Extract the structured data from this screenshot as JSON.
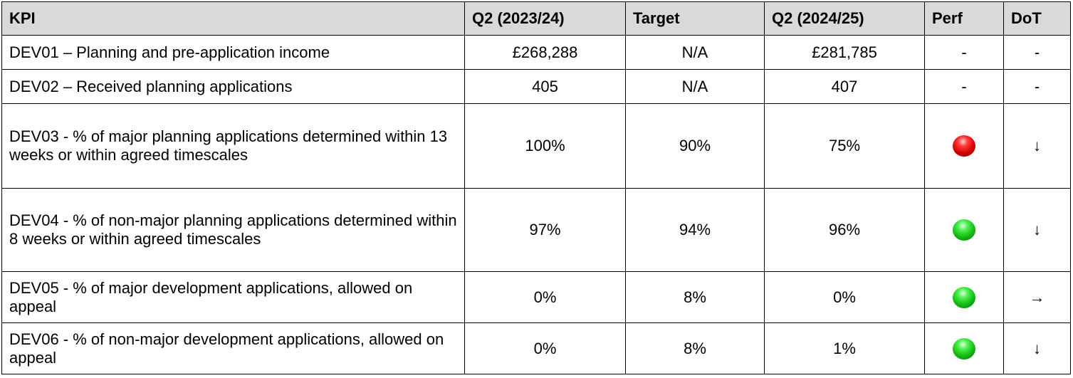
{
  "table": {
    "columns": [
      "KPI",
      "Q2 (2023/24)",
      "Target",
      "Q2 (2024/25)",
      "Perf",
      "DoT"
    ],
    "rows": [
      [
        "DEV01 – Planning and pre-application income",
        "£268,288",
        "N/A",
        "£281,785",
        "-",
        "-"
      ],
      [
        "DEV02 – Received planning applications",
        "405",
        "N/A",
        "407",
        "-",
        "-"
      ],
      [
        "DEV03 - % of major planning applications determined within 13 weeks or within agreed timescales",
        "100%",
        "90%",
        "75%",
        {
          "indicator": "red"
        },
        "↓"
      ],
      [
        "DEV04 - % of non-major planning applications determined within 8 weeks or within agreed timescales",
        "97%",
        "94%",
        "96%",
        {
          "indicator": "green"
        },
        "↓"
      ],
      [
        "DEV05 - % of major development applications, allowed on appeal",
        "0%",
        "8%",
        "0%",
        {
          "indicator": "green"
        },
        "→"
      ],
      [
        "DEV06 - % of non-major development applications, allowed on appeal",
        "0%",
        "8%",
        "1%",
        {
          "indicator": "green"
        },
        "↓"
      ]
    ]
  }
}
